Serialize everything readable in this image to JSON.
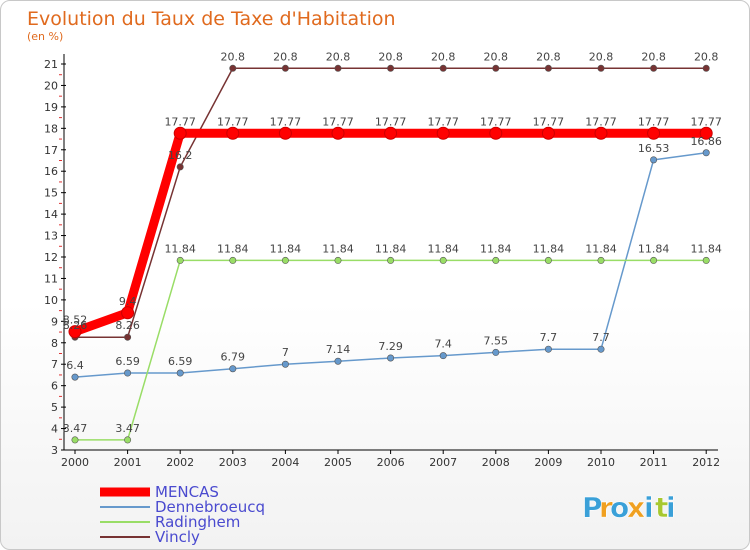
{
  "chart_data": {
    "type": "line",
    "title": "Evolution du Taux de Taxe d'Habitation",
    "subtitle": "(en %)",
    "xlabel": "",
    "ylabel": "",
    "x": [
      "2000",
      "2001",
      "2002",
      "2003",
      "2004",
      "2005",
      "2006",
      "2007",
      "2008",
      "2009",
      "2010",
      "2011",
      "2012"
    ],
    "ylim": [
      3,
      21
    ],
    "yticks": [
      "3",
      "4",
      "5",
      "6",
      "7",
      "8",
      "9",
      "10",
      "11",
      "12",
      "13",
      "14",
      "15",
      "16",
      "17",
      "18",
      "19",
      "20",
      "21"
    ],
    "grid": false,
    "legend": "bottom-left",
    "series": [
      {
        "name": "MENCAS",
        "color": "#ff0000",
        "values": [
          8.52,
          9.4,
          17.77,
          17.77,
          17.77,
          17.77,
          17.77,
          17.77,
          17.77,
          17.77,
          17.77,
          17.77,
          17.77
        ],
        "labels": [
          "8.52",
          "9.4",
          "17.77",
          "17.77",
          "17.77",
          "17.77",
          "17.77",
          "17.77",
          "17.77",
          "17.77",
          "17.77",
          "17.77",
          "17.77"
        ]
      },
      {
        "name": "Dennebroeucq",
        "color": "#6699cc",
        "values": [
          6.4,
          6.59,
          6.59,
          6.79,
          7,
          7.14,
          7.29,
          7.4,
          7.55,
          7.7,
          7.7,
          16.53,
          16.86
        ],
        "labels": [
          "6.4",
          "6.59",
          "6.59",
          "6.79",
          "7",
          "7.14",
          "7.29",
          "7.4",
          "7.55",
          "7.7",
          "7.7",
          "16.53",
          "16.86"
        ]
      },
      {
        "name": "Radinghem",
        "color": "#99dd66",
        "values": [
          3.47,
          3.47,
          11.84,
          11.84,
          11.84,
          11.84,
          11.84,
          11.84,
          11.84,
          11.84,
          11.84,
          11.84,
          11.84
        ],
        "labels": [
          "3.47",
          "3.47",
          "11.84",
          "11.84",
          "11.84",
          "11.84",
          "11.84",
          "11.84",
          "11.84",
          "11.84",
          "11.84",
          "11.84",
          "11.84"
        ]
      },
      {
        "name": "Vincly",
        "color": "#773333",
        "values": [
          8.26,
          8.26,
          16.2,
          20.8,
          20.8,
          20.8,
          20.8,
          20.8,
          20.8,
          20.8,
          20.8,
          20.8,
          20.8
        ],
        "labels": [
          "8.26",
          "8.26",
          "16.2",
          "20.8",
          "20.8",
          "20.8",
          "20.8",
          "20.8",
          "20.8",
          "20.8",
          "20.8",
          "20.8",
          "20.8"
        ]
      }
    ]
  },
  "brand": {
    "letters": [
      "P",
      "r",
      "o",
      "x",
      "i",
      "t",
      "i"
    ],
    "colors": [
      "#3aa0d8",
      "#f0a020",
      "#3aa0d8",
      "#f0a020",
      "#3aa0d8",
      "#a8c830",
      "#3aa0d8"
    ]
  }
}
